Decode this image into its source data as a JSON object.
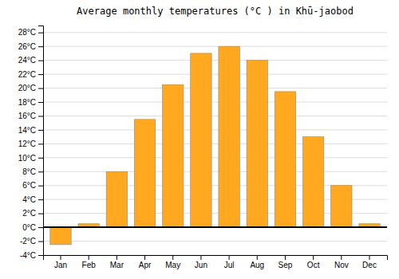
{
  "chart_data": {
    "type": "bar",
    "title": "Average monthly temperatures (°C ) in Khū-jaobod",
    "categories": [
      "Jan",
      "Feb",
      "Mar",
      "Apr",
      "May",
      "Jun",
      "Jul",
      "Aug",
      "Sep",
      "Oct",
      "Nov",
      "Dec"
    ],
    "values": [
      -2.5,
      0.5,
      8.0,
      15.5,
      20.5,
      25.0,
      26.0,
      24.0,
      19.5,
      13.0,
      6.0,
      0.5
    ],
    "color": "#FFA820",
    "ylim": [
      -4,
      29
    ],
    "yticks": [
      {
        "value": -4,
        "label": "-4°C"
      },
      {
        "value": -2,
        "label": "-2°C"
      },
      {
        "value": 0,
        "label": "0°C"
      },
      {
        "value": 2,
        "label": "2°C"
      },
      {
        "value": 4,
        "label": "4°C"
      },
      {
        "value": 6,
        "label": "6°C"
      },
      {
        "value": 8,
        "label": "8°C"
      },
      {
        "value": 10,
        "label": "10°C"
      },
      {
        "value": 12,
        "label": "12°C"
      },
      {
        "value": 14,
        "label": "14°C"
      },
      {
        "value": 16,
        "label": "16°C"
      },
      {
        "value": 18,
        "label": "18°C"
      },
      {
        "value": 20,
        "label": "20°C"
      },
      {
        "value": 22,
        "label": "22°C"
      },
      {
        "value": 24,
        "label": "24°C"
      },
      {
        "value": 26,
        "label": "26°C"
      },
      {
        "value": 28,
        "label": "28°C"
      }
    ],
    "grid": true
  }
}
